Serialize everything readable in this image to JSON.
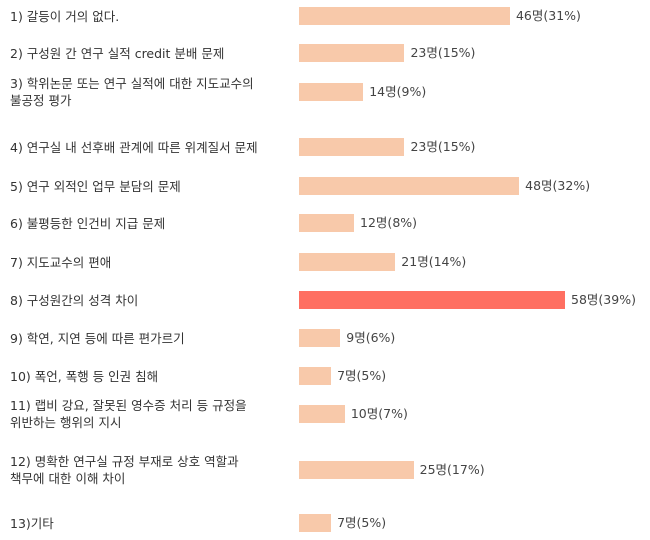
{
  "colors": {
    "bar": "#f8c9aa",
    "highlight": "#ff6f61"
  },
  "chart_data": {
    "type": "bar",
    "orientation": "horizontal",
    "categories": [
      "1) 갈등이 거의 없다.",
      "2) 구성원 간 연구 실적 credit 분배 문제",
      "3) 학위논문 또는 연구 실적에 대한 지도교수의\n불공정 평가",
      "4) 연구실 내 선후배 관계에 따른 위계질서 문제",
      "5) 연구 외적인 업무 분담의 문제",
      "6) 불평등한 인건비 지급 문제",
      "7) 지도교수의 편애",
      "8) 구성원간의 성격 차이",
      "9) 학연, 지연 등에 따른 편가르기",
      "10) 폭언, 폭행 등 인권 침해",
      "11) 랩비 강요, 잘못된 영수증 처리 등 규정을\n위반하는 행위의 지시",
      "12) 명확한 연구실 규정 부재로 상호 역할과\n책무에 대한 이해 차이",
      "13)기타"
    ],
    "values": [
      46,
      23,
      14,
      23,
      48,
      12,
      21,
      58,
      9,
      7,
      10,
      25,
      7
    ],
    "value_labels": [
      "46명(31%)",
      "23명(15%)",
      "14명(9%)",
      "23명(15%)",
      "48명(32%)",
      "12명(8%)",
      "21명(14%)",
      "58명(39%)",
      "9명(6%)",
      "7명(5%)",
      "10명(7%)",
      "25명(17%)",
      "7명(5%)"
    ],
    "highlight_index": 7,
    "xlim": [
      0,
      58
    ]
  }
}
